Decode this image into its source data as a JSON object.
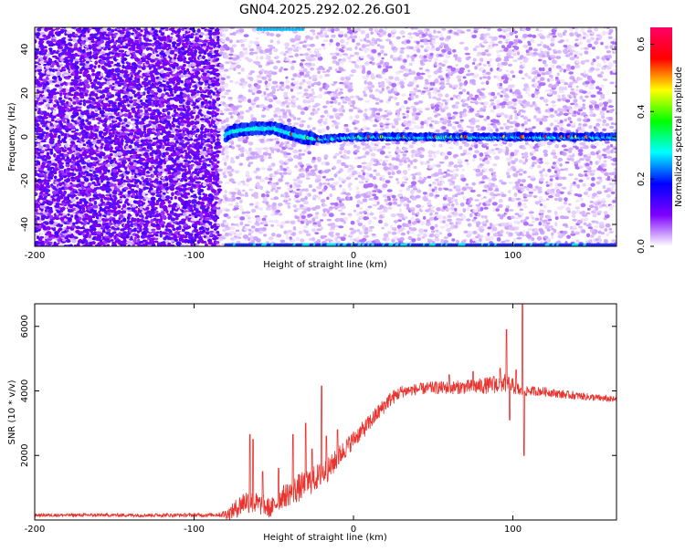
{
  "title": "GN04.2025.292.02.26.G01",
  "colors": {
    "snr_line": "#e8332e",
    "heatmap_background": "#ffffff",
    "signal_band": "#00e8e8",
    "colormap": [
      "#ffffff",
      "#7d00ff",
      "#0000ff",
      "#00ffff",
      "#00ff00",
      "#ffff00",
      "#ff0000",
      "#ff0066"
    ]
  },
  "chart_data": [
    {
      "type": "heatmap",
      "xlabel": "Height of straight line (km)",
      "ylabel": "Frequency (Hz)",
      "xlim": [
        -200,
        165
      ],
      "ylim": [
        -50,
        50
      ],
      "xticks": [
        -200,
        -100,
        0,
        100
      ],
      "yticks": [
        -40,
        -20,
        0,
        20,
        40
      ],
      "colorbar": {
        "label": "Normalized spectral amplitude",
        "range": [
          0.0,
          0.65
        ],
        "ticks": [
          0.0,
          0.2,
          0.4,
          0.6
        ],
        "tick_labels": [
          "0.0",
          "0.2",
          "0.4",
          "0.6"
        ]
      },
      "features": {
        "dense_noise_until_x": -85,
        "signal_frequency_hz": 0,
        "signal_start_x": -80,
        "signal_wiggle": [
          [
            -85,
            -3
          ],
          [
            -78,
            2
          ],
          [
            -72,
            3
          ],
          [
            -62,
            4
          ],
          [
            -50,
            4
          ],
          [
            -42,
            2
          ],
          [
            -32,
            0
          ],
          [
            -22,
            -1
          ],
          [
            0,
            0
          ],
          [
            165,
            0
          ]
        ],
        "edge_band_frequency_hz": -49.5,
        "edge_band_start_x": -80
      }
    },
    {
      "type": "line",
      "xlabel": "Height of straight line (km)",
      "ylabel": "SNR (10 * v/v)",
      "xlim": [
        -200,
        165
      ],
      "ylim": [
        0,
        6700
      ],
      "xticks": [
        -200,
        -100,
        0,
        100
      ],
      "yticks": [
        2000,
        4000,
        6000
      ],
      "series": [
        {
          "envelope": [
            [
              -200,
              150
            ],
            [
              -150,
              150
            ],
            [
              -110,
              150
            ],
            [
              -85,
              160
            ],
            [
              -78,
              200
            ],
            [
              -72,
              420
            ],
            [
              -68,
              600
            ],
            [
              -60,
              500
            ],
            [
              -52,
              350
            ],
            [
              -45,
              700
            ],
            [
              -38,
              900
            ],
            [
              -30,
              1100
            ],
            [
              -22,
              1350
            ],
            [
              -15,
              1600
            ],
            [
              -8,
              2050
            ],
            [
              0,
              2500
            ],
            [
              8,
              2900
            ],
            [
              15,
              3300
            ],
            [
              22,
              3700
            ],
            [
              30,
              3980
            ],
            [
              40,
              4050
            ],
            [
              50,
              4100
            ],
            [
              60,
              4100
            ],
            [
              70,
              4120
            ],
            [
              80,
              4150
            ],
            [
              90,
              4200
            ],
            [
              95,
              4250
            ],
            [
              100,
              4150
            ],
            [
              105,
              3980
            ],
            [
              110,
              4000
            ],
            [
              120,
              3980
            ],
            [
              130,
              3900
            ],
            [
              140,
              3850
            ],
            [
              150,
              3800
            ],
            [
              165,
              3720
            ]
          ],
          "noise": [
            [
              -200,
              50
            ],
            [
              -85,
              60
            ],
            [
              -78,
              200
            ],
            [
              -70,
              380
            ],
            [
              -50,
              300
            ],
            [
              -35,
              450
            ],
            [
              -20,
              400
            ],
            [
              0,
              280
            ],
            [
              20,
              250
            ],
            [
              35,
              180
            ],
            [
              70,
              220
            ],
            [
              95,
              300
            ],
            [
              108,
              150
            ],
            [
              165,
              100
            ]
          ],
          "spikes": [
            [
              -65,
              2650
            ],
            [
              -63,
              2500
            ],
            [
              -57,
              1500
            ],
            [
              -47,
              1600
            ],
            [
              -38,
              2650
            ],
            [
              -30,
              3000
            ],
            [
              -26,
              2200
            ],
            [
              -20,
              4150
            ],
            [
              -17,
              2600
            ],
            [
              -10,
              2800
            ],
            [
              60,
              4500
            ],
            [
              75,
              4600
            ],
            [
              88,
              4450
            ],
            [
              92,
              4700
            ],
            [
              96,
              5900
            ],
            [
              98,
              3100
            ],
            [
              102,
              4650
            ],
            [
              106,
              6700
            ],
            [
              107,
              2000
            ]
          ]
        }
      ]
    }
  ]
}
